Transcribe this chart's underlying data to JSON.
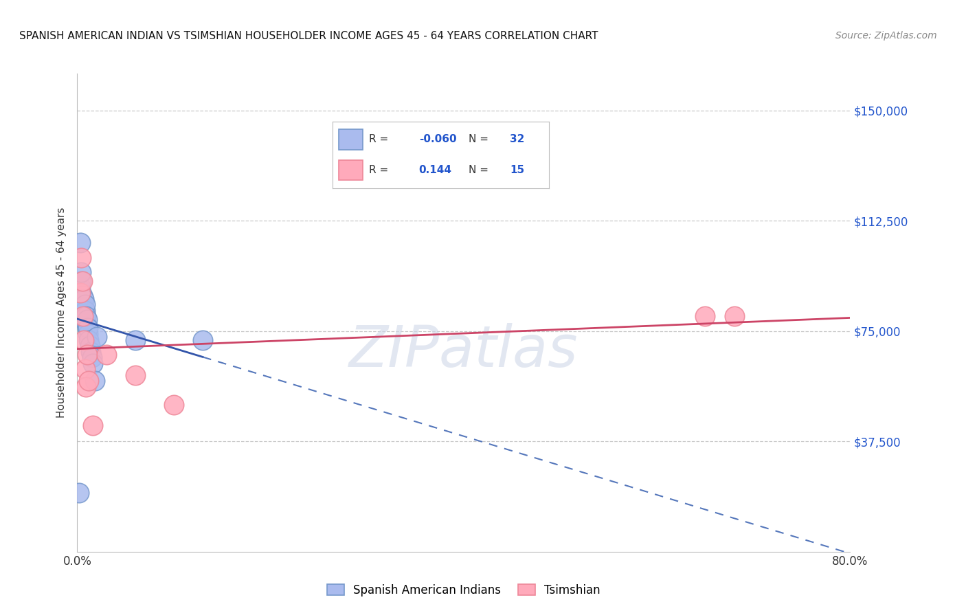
{
  "title": "SPANISH AMERICAN INDIAN VS TSIMSHIAN HOUSEHOLDER INCOME AGES 45 - 64 YEARS CORRELATION CHART",
  "source": "Source: ZipAtlas.com",
  "ylabel": "Householder Income Ages 45 - 64 years",
  "xlim": [
    0.0,
    0.8
  ],
  "ylim": [
    0,
    162500
  ],
  "ytick_values": [
    37500,
    75000,
    112500,
    150000
  ],
  "ytick_labels": [
    "$37,500",
    "$75,000",
    "$112,500",
    "$150,000"
  ],
  "grid_color": "#c8c8c8",
  "background_color": "#ffffff",
  "blue_scatter_color": "#aabbee",
  "blue_edge_color": "#7799cc",
  "pink_scatter_color": "#ffaabb",
  "pink_edge_color": "#ee8899",
  "line_blue_solid": "#3355aa",
  "line_blue_dash": "#5577bb",
  "line_pink": "#cc4466",
  "R_blue": -0.06,
  "N_blue": 32,
  "R_pink": 0.144,
  "N_pink": 15,
  "blue_x": [
    0.002,
    0.003,
    0.003,
    0.004,
    0.004,
    0.004,
    0.005,
    0.005,
    0.006,
    0.006,
    0.006,
    0.007,
    0.007,
    0.007,
    0.008,
    0.008,
    0.008,
    0.009,
    0.009,
    0.01,
    0.01,
    0.011,
    0.011,
    0.012,
    0.013,
    0.014,
    0.015,
    0.016,
    0.018,
    0.02,
    0.06,
    0.13
  ],
  "blue_y": [
    20000,
    90000,
    105000,
    88000,
    92000,
    95000,
    85000,
    87000,
    82000,
    84000,
    86000,
    80000,
    83000,
    86000,
    80000,
    82000,
    84000,
    78000,
    80000,
    76000,
    79000,
    74000,
    76000,
    72000,
    70000,
    68000,
    66000,
    64000,
    58000,
    73000,
    72000,
    72000
  ],
  "pink_x": [
    0.003,
    0.004,
    0.005,
    0.006,
    0.007,
    0.008,
    0.009,
    0.01,
    0.012,
    0.016,
    0.03,
    0.06,
    0.1,
    0.65,
    0.68
  ],
  "pink_y": [
    88000,
    100000,
    92000,
    80000,
    72000,
    62000,
    56000,
    67000,
    58000,
    43000,
    67000,
    60000,
    50000,
    80000,
    80000
  ],
  "legend_blue_label": "R =  -0.060   N = 32",
  "legend_pink_label": "R =   0.144   N = 15",
  "bottom_legend_blue": "Spanish American Indians",
  "bottom_legend_pink": "Tsimshian"
}
